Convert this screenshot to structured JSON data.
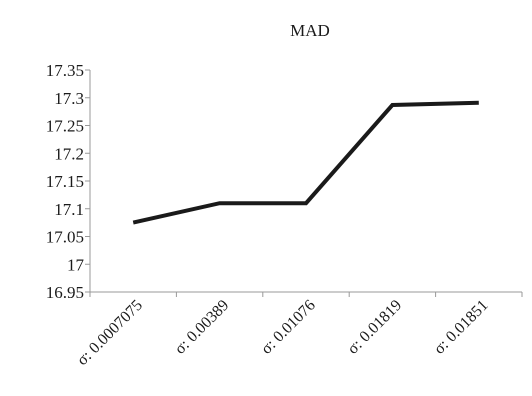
{
  "chart_data": {
    "type": "line",
    "title": "MAD",
    "xlabel": "",
    "ylabel": "",
    "categories": [
      "σ: 0.0007075",
      "σ: 0.00389",
      "σ: 0.01076",
      "σ: 0.01819",
      "σ: 0.01851"
    ],
    "series": [
      {
        "values": [
          17.075,
          17.11,
          17.11,
          17.287,
          17.291
        ],
        "color": "#1a1a1a"
      }
    ],
    "ylim": [
      16.95,
      17.35
    ],
    "yticks": [
      16.95,
      17,
      17.05,
      17.1,
      17.15,
      17.2,
      17.25,
      17.3,
      17.35
    ],
    "ytick_labels": [
      "16.95",
      "17",
      "17.05",
      "17.1",
      "17.15",
      "17.2",
      "17.25",
      "17.3",
      "17.35"
    ],
    "grid": false,
    "legend": "none"
  }
}
